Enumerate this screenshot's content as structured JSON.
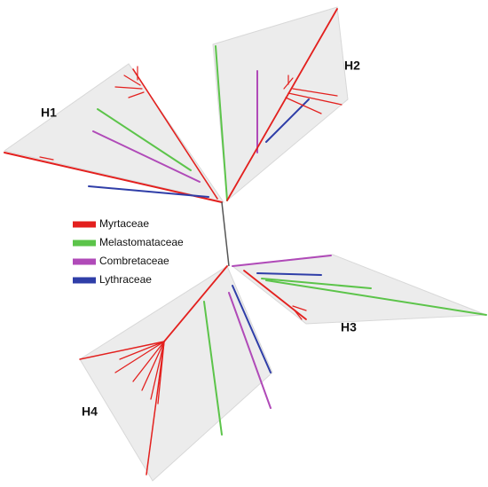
{
  "clades": [
    {
      "label": "H1"
    },
    {
      "label": "H2"
    },
    {
      "label": "H3"
    },
    {
      "label": "H4"
    }
  ],
  "legend": [
    {
      "name": "Myrtaceae",
      "color": "#e3201e"
    },
    {
      "name": "Melastomataceae",
      "color": "#5cc44a"
    },
    {
      "name": "Combretaceae",
      "color": "#b04ab8"
    },
    {
      "name": "Lythraceae",
      "color": "#2f3ea8"
    }
  ]
}
